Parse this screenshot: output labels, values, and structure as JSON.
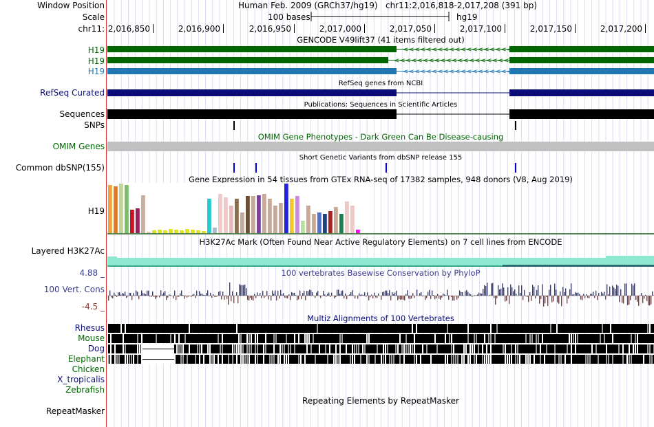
{
  "header": {
    "window_position_label": "Window Position",
    "assembly": "Human Feb. 2009 (GRCh37/hg19)",
    "position": "chr11:2,016,818-2,017,208 (391 bp)",
    "scale_label": "Scale",
    "scale_bar_text": "100 bases",
    "scale_db": "hg19",
    "chrom_label": "chr11:",
    "ruler_ticks": [
      "2,016,850",
      "2,016,900",
      "2,016,950",
      "2,017,000",
      "2,017,050",
      "2,017,100",
      "2,017,150",
      "2,017,200"
    ]
  },
  "tracks": {
    "gencode": {
      "title": "GENCODE V49lift37 (41 items filtered out)",
      "items": [
        {
          "label": "H19",
          "color": "#006400"
        },
        {
          "label": "H19",
          "color": "#006400"
        },
        {
          "label": "H19",
          "color": "#1f78b4"
        }
      ]
    },
    "refseq": {
      "title": "RefSeq genes from NCBI",
      "label": "RefSeq Curated",
      "color": "#0c0c78"
    },
    "publications": {
      "title": "Publications: Sequences in Scientific Articles",
      "label": "Sequences"
    },
    "snps": {
      "label": "SNPs"
    },
    "omim": {
      "title": "OMIM Gene Phenotypes - Dark Green Can Be Disease-causing",
      "label": "OMIM Genes",
      "color": "#006400"
    },
    "dbsnp": {
      "title": "Short Genetic Variants from dbSNP release 155",
      "label": "Common dbSNP(155)"
    },
    "gtex": {
      "title": "Gene Expression in 54 tissues from GTEx RNA-seq of 17382 samples, 948 donors (V8, Aug 2019)",
      "label": "H19"
    },
    "h3k27ac": {
      "title": "H3K27Ac Mark (Often Found Near Active Regulatory Elements) on 7 cell lines from ENCODE",
      "label": "Layered H3K27Ac"
    },
    "phylop": {
      "title": "100 vertebrates Basewise Conservation by PhyloP",
      "label": "100 Vert. Cons",
      "max": "4.88 _",
      "min": "-4.5 _",
      "color": "#3b3b8c"
    },
    "multiz": {
      "title": "Multiz Alignments of 100 Vertebrates",
      "species": [
        {
          "name": "Rhesus",
          "color": "#0c0c78"
        },
        {
          "name": "Mouse",
          "color": "#006400"
        },
        {
          "name": "Dog",
          "color": "#0c0c78"
        },
        {
          "name": "Elephant",
          "color": "#006400"
        },
        {
          "name": "Chicken",
          "color": "#006400"
        },
        {
          "name": "X_tropicalis",
          "color": "#0c0c78"
        },
        {
          "name": "Zebrafish",
          "color": "#006400"
        }
      ]
    },
    "repeatmasker": {
      "title": "Repeating Elements by RepeatMasker",
      "label": "RepeatMasker"
    }
  }
}
